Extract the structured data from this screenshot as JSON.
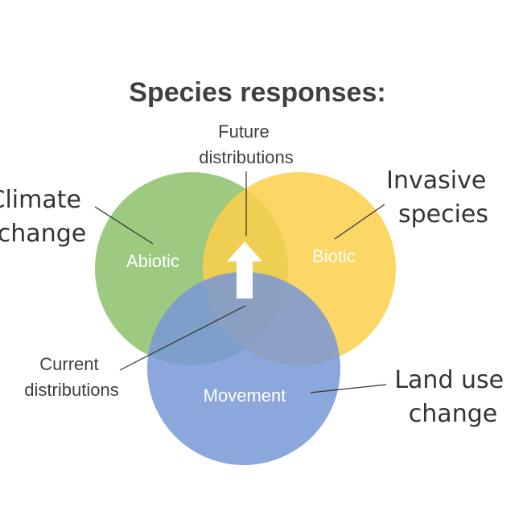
{
  "title": "Species responses:",
  "circles": {
    "abiotic": {
      "label": "Abiotic",
      "color": "#8dbf6b"
    },
    "biotic": {
      "label": "Biotic",
      "color": "#fcd04a"
    },
    "movement": {
      "label": "Movement",
      "color": "#7898d6"
    }
  },
  "annotations": {
    "climate_change": [
      "Climate",
      "change"
    ],
    "invasive_species": [
      "Invasive",
      "species"
    ],
    "land_use_change": [
      "Land use",
      "change"
    ],
    "future_distributions": [
      "Future",
      "distributions"
    ],
    "current_distributions": [
      "Current",
      "distributions"
    ]
  },
  "arrow": {
    "direction": "up",
    "color": "#ffffff"
  }
}
